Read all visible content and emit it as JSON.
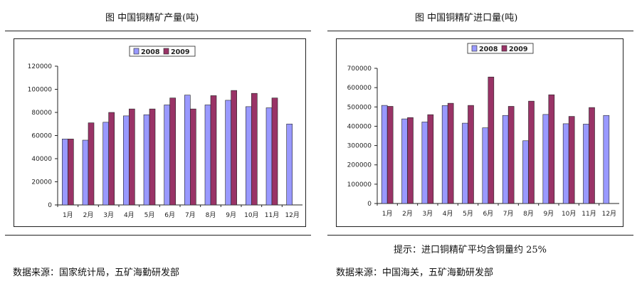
{
  "left_panel": {
    "title": "图  中国铜精矿产量(吨)",
    "source": "数据来源：国家统计局，五矿海勤研发部"
  },
  "right_panel": {
    "title": "图   中国铜精矿进口量(吨)",
    "hint": "提示：进口铜精矿平均含铜量约 25%",
    "source": "数据来源：中国海关，五矿海勤研发部"
  },
  "colors": {
    "2008": "#9999ff",
    "2009": "#993366"
  },
  "chart_data": [
    {
      "type": "bar",
      "title": "",
      "categories": [
        "1月",
        "2月",
        "3月",
        "4月",
        "5月",
        "6月",
        "7月",
        "8月",
        "9月",
        "10月",
        "11月",
        "12月"
      ],
      "ylim": [
        0,
        120000
      ],
      "yticks": [
        0,
        20000,
        40000,
        60000,
        80000,
        100000,
        120000
      ],
      "legend_position": "top-center",
      "grid": false,
      "series": [
        {
          "name": "2008",
          "values": [
            57000,
            56000,
            71500,
            77000,
            78000,
            86500,
            95000,
            86500,
            90500,
            85000,
            84000,
            70000
          ]
        },
        {
          "name": "2009",
          "values": [
            57000,
            71000,
            80000,
            83000,
            83000,
            92500,
            83000,
            94500,
            99000,
            96500,
            92500,
            null
          ]
        }
      ]
    },
    {
      "type": "bar",
      "title": "",
      "categories": [
        "1月",
        "2月",
        "3月",
        "4月",
        "5月",
        "6月",
        "7月",
        "8月",
        "9月",
        "10月",
        "11月",
        "12月"
      ],
      "ylim": [
        0,
        700000
      ],
      "yticks": [
        0,
        100000,
        200000,
        300000,
        400000,
        500000,
        600000,
        700000
      ],
      "legend_position": "top-center",
      "grid": false,
      "series": [
        {
          "name": "2008",
          "values": [
            508000,
            438000,
            422000,
            507000,
            416000,
            392000,
            456000,
            325000,
            461000,
            413000,
            411000,
            456000
          ]
        },
        {
          "name": "2009",
          "values": [
            503000,
            445000,
            460000,
            519000,
            508000,
            655000,
            503000,
            530000,
            563000,
            451000,
            497000,
            null
          ]
        }
      ]
    }
  ]
}
